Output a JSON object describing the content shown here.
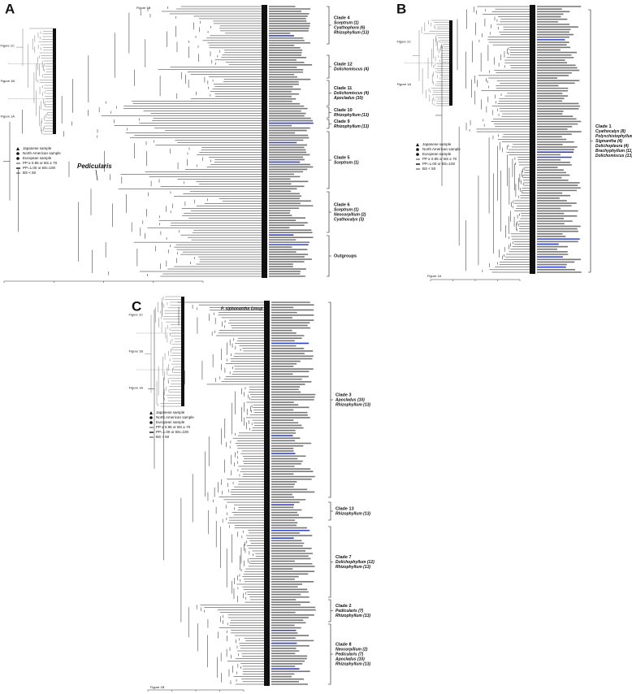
{
  "panels": [
    {
      "letter": "A",
      "top_label": "Figure 1B",
      "thumb_labels": [
        "Figure 1C",
        "Figure 1B",
        "Figure 1A"
      ],
      "genus_label": "Pedicularis",
      "legend": [
        "Japanese sample",
        "North American sample",
        "European sample",
        "PP ≥ 0.95 or BS ≥ 70",
        "PP=1.00 or BS=100",
        "BS < 50"
      ],
      "clades": [
        {
          "name": "Clade 4",
          "lines": [
            "Sceptrum (1)",
            "Cyathophora (6)",
            "Rhizophyllum (13)"
          ]
        },
        {
          "name": "Clade 12",
          "lines": [
            "Dolichomiscus (4)"
          ]
        },
        {
          "name": "Clade 11",
          "lines": [
            "Dolichomiscus (4)",
            "Apocladus (10)"
          ]
        },
        {
          "name": "Clade 10",
          "lines": [
            "Rhizophyllum (13)"
          ]
        },
        {
          "name": "Clade 9",
          "lines": [
            "Rhizophyllum (13)"
          ]
        },
        {
          "name": "Clade 5",
          "lines": [
            "Sceptrum (1)"
          ]
        },
        {
          "name": "Clade 6",
          "lines": [
            "Sceptrum (1)",
            "Neocorpillum (2)",
            "Cyathocalyx (3)"
          ]
        },
        {
          "name": "Outgroups",
          "lines": []
        }
      ]
    },
    {
      "letter": "B",
      "top_label": "Figure 1A",
      "thumb_labels": [
        "Figure 1C",
        "Figure 1A"
      ],
      "legend": [
        "Japanese sample",
        "North American sample",
        "European sample",
        "PP ≥ 0.95 or BS ≥ 70",
        "PP=1.00 or BS=100",
        "BS < 50"
      ],
      "clades": [
        {
          "name": "Clade 1",
          "lines": [
            "Cyathocalyx (8)",
            "Polyschistophyllum (6)",
            "Sigmantha (4)",
            "Dolichopleura (4)",
            "Brachyphyllum (11)",
            "Dolichomiscus (13)"
          ]
        }
      ]
    },
    {
      "letter": "C",
      "top_label": "Figure 1B",
      "thumb_labels": [
        "Figure 1C",
        "Figure 1B",
        "Figure 1A"
      ],
      "genus_label": "P. siphonantha Group",
      "legend": [
        "Japanese sample",
        "North American sample",
        "European sample",
        "PP ≥ 0.95 or BS ≥ 70",
        "PP=1.00 or BS=100",
        "BS < 50"
      ],
      "clades": [
        {
          "name": "Clade 3",
          "lines": [
            "Apocladus (10)",
            "Rhizophyllum (13)"
          ]
        },
        {
          "name": "Clade 13",
          "lines": [
            "Rhizophyllum (13)"
          ]
        },
        {
          "name": "Clade 7",
          "lines": [
            "Dolichophyllum (12)",
            "Rhizophyllum (13)"
          ]
        },
        {
          "name": "Clade 2",
          "lines": [
            "Pedicularis (7)",
            "Rhizophyllum (13)"
          ]
        },
        {
          "name": "Clade 8",
          "lines": [
            "Neocorpillum (2)",
            "Pedicularis (7)",
            "Apocladus (10)",
            "Rhizophyllum (13)"
          ]
        }
      ]
    }
  ]
}
